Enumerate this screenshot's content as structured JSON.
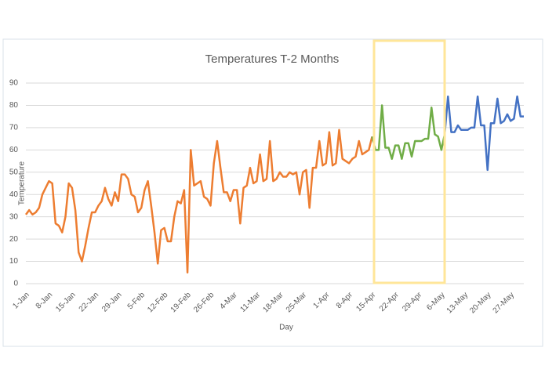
{
  "chart_data": {
    "type": "line",
    "title": "Temperatures  T-2 Months",
    "x_label": "Day",
    "y_label": "Temperature",
    "categories": [
      "1-Jan",
      null,
      null,
      null,
      null,
      null,
      null,
      "8-Jan",
      null,
      null,
      null,
      null,
      null,
      null,
      "15-Jan",
      null,
      null,
      null,
      null,
      null,
      null,
      "22-Jan",
      null,
      null,
      null,
      null,
      null,
      null,
      "29-Jan",
      null,
      null,
      null,
      null,
      null,
      null,
      "5-Feb",
      null,
      null,
      null,
      null,
      null,
      null,
      "12-Feb",
      null,
      null,
      null,
      null,
      null,
      null,
      "19-Feb",
      null,
      null,
      null,
      null,
      null,
      null,
      "26-Feb",
      null,
      null,
      null,
      null,
      null,
      null,
      "4-Mar",
      null,
      null,
      null,
      null,
      null,
      null,
      "11-Mar",
      null,
      null,
      null,
      null,
      null,
      null,
      "18-Mar",
      null,
      null,
      null,
      null,
      null,
      null,
      "25-Mar",
      null,
      null,
      null,
      null,
      null,
      null,
      "1-Apr",
      null,
      null,
      null,
      null,
      null,
      null,
      "8-Apr",
      null,
      null,
      null,
      null,
      null,
      null,
      "15-Apr",
      null,
      null,
      null,
      null,
      null,
      null,
      "22-Apr",
      null,
      null,
      null,
      null,
      null,
      null,
      "29-Apr",
      null,
      null,
      null,
      null,
      null,
      null,
      "6-May",
      null,
      null,
      null,
      null,
      null,
      null,
      "13-May",
      null,
      null,
      null,
      null,
      null,
      null,
      "20-May",
      null,
      null,
      null,
      null,
      null,
      null,
      "27-May",
      null,
      null,
      null,
      null
    ],
    "series": [
      {
        "color": "#ed7d31",
        "values": [
          31,
          33,
          31,
          32,
          34,
          40,
          43,
          46,
          45,
          27,
          26,
          23,
          30,
          45,
          43,
          33,
          14,
          10,
          17,
          25,
          32,
          32,
          35,
          37,
          43,
          38,
          35,
          41,
          37,
          49,
          49,
          47,
          40,
          39,
          32,
          34,
          42,
          46,
          35,
          23,
          9,
          24,
          25,
          19,
          19,
          30,
          37,
          36,
          42,
          5,
          60,
          44,
          45,
          46,
          39,
          38,
          35,
          54,
          64,
          52,
          41,
          41,
          37,
          42,
          42,
          27,
          43,
          44,
          52,
          45,
          46,
          58,
          46,
          47,
          64,
          46,
          47,
          50,
          48,
          48,
          50,
          49,
          50,
          40,
          50,
          51,
          34,
          52,
          52,
          64,
          53,
          54,
          68,
          53,
          54,
          69,
          56,
          55,
          54,
          56,
          57,
          64,
          58,
          59,
          60,
          66,
          null,
          null,
          null,
          null,
          null,
          null,
          null,
          null,
          null,
          null,
          null,
          null,
          null,
          null,
          null,
          null,
          null,
          null,
          null,
          null,
          null,
          null,
          null,
          null,
          null,
          null,
          null,
          null,
          null,
          null,
          null,
          null,
          null,
          null,
          null,
          null,
          null,
          null,
          null,
          null,
          null,
          null,
          null,
          null,
          null,
          null
        ]
      },
      {
        "color": "#70ad47",
        "values": [
          null,
          null,
          null,
          null,
          null,
          null,
          null,
          null,
          null,
          null,
          null,
          null,
          null,
          null,
          null,
          null,
          null,
          null,
          null,
          null,
          null,
          null,
          null,
          null,
          null,
          null,
          null,
          null,
          null,
          null,
          null,
          null,
          null,
          null,
          null,
          null,
          null,
          null,
          null,
          null,
          null,
          null,
          null,
          null,
          null,
          null,
          null,
          null,
          null,
          null,
          null,
          null,
          null,
          null,
          null,
          null,
          null,
          null,
          null,
          null,
          null,
          null,
          null,
          null,
          null,
          null,
          null,
          null,
          null,
          null,
          null,
          null,
          null,
          null,
          null,
          null,
          null,
          null,
          null,
          null,
          null,
          null,
          null,
          null,
          null,
          null,
          null,
          null,
          null,
          null,
          null,
          null,
          null,
          null,
          null,
          null,
          null,
          null,
          null,
          null,
          null,
          null,
          null,
          null,
          null,
          66,
          60,
          60,
          80,
          61,
          61,
          56,
          62,
          62,
          56,
          63,
          63,
          57,
          64,
          64,
          64,
          65,
          65,
          79,
          67,
          66,
          60,
          67,
          null,
          null,
          null,
          null,
          null,
          null,
          null,
          null,
          null,
          null,
          null,
          null,
          null,
          null,
          null,
          null,
          null,
          null,
          null,
          null,
          null,
          null,
          null,
          null
        ]
      },
      {
        "color": "#4472c4",
        "values": [
          null,
          null,
          null,
          null,
          null,
          null,
          null,
          null,
          null,
          null,
          null,
          null,
          null,
          null,
          null,
          null,
          null,
          null,
          null,
          null,
          null,
          null,
          null,
          null,
          null,
          null,
          null,
          null,
          null,
          null,
          null,
          null,
          null,
          null,
          null,
          null,
          null,
          null,
          null,
          null,
          null,
          null,
          null,
          null,
          null,
          null,
          null,
          null,
          null,
          null,
          null,
          null,
          null,
          null,
          null,
          null,
          null,
          null,
          null,
          null,
          null,
          null,
          null,
          null,
          null,
          null,
          null,
          null,
          null,
          null,
          null,
          null,
          null,
          null,
          null,
          null,
          null,
          null,
          null,
          null,
          null,
          null,
          null,
          null,
          null,
          null,
          null,
          null,
          null,
          null,
          null,
          null,
          null,
          null,
          null,
          null,
          null,
          null,
          null,
          null,
          null,
          null,
          null,
          null,
          null,
          null,
          null,
          null,
          null,
          null,
          null,
          null,
          null,
          null,
          null,
          null,
          null,
          null,
          null,
          null,
          null,
          null,
          null,
          null,
          null,
          null,
          null,
          67,
          84,
          68,
          68,
          71,
          69,
          69,
          69,
          70,
          70,
          84,
          71,
          71,
          51,
          72,
          72,
          83,
          72,
          73,
          76,
          73,
          74,
          84,
          75,
          75
        ]
      }
    ],
    "ylim": [
      0,
      90
    ],
    "yticks": [
      0,
      10,
      20,
      30,
      40,
      50,
      60,
      70,
      80,
      90
    ],
    "grid": true
  }
}
